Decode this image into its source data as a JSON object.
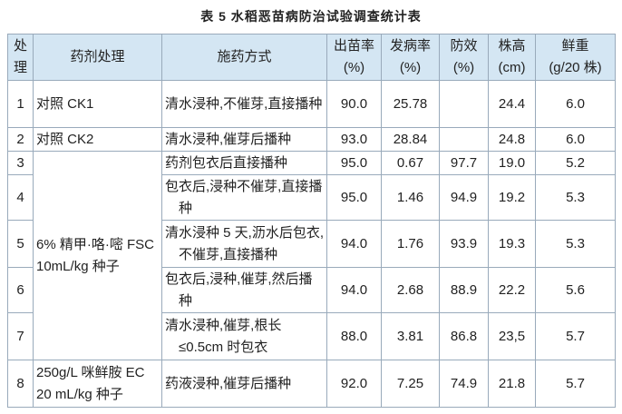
{
  "title": "表 5 水稻恶苗病防治试验调查统计表",
  "table": {
    "header": [
      {
        "label": "处理"
      },
      {
        "label": "药剂处理"
      },
      {
        "label": "施药方式"
      },
      {
        "label": "出苗率",
        "unit": "(%)"
      },
      {
        "label": "发病率",
        "unit": "(%)"
      },
      {
        "label": "防效",
        "unit": "(%)"
      },
      {
        "label": "株高",
        "unit": "(cm)"
      },
      {
        "label": "鲜重",
        "unit": "(g/20 株)"
      }
    ],
    "rows": [
      {
        "id": "1",
        "agent": "对照 CK1",
        "method": "清水浸种,不催芽,直接播种",
        "emergence": "90.0",
        "incidence": "25.78",
        "height": "24.4",
        "weight": "6.0"
      },
      {
        "id": "2",
        "agent": "对照 CK2",
        "method": "清水浸种,催芽后播种",
        "emergence": "93.0",
        "incidence": "28.84",
        "height": "24.8",
        "weight": "6.0"
      },
      {
        "id": "3",
        "agent": "6% 精甲·咯·嘧 FSC 10mL/kg 种子",
        "method": "药剂包衣后直接播种",
        "emergence": "95.0",
        "incidence": "0.67",
        "efficacy": "97.7",
        "height": "19.0",
        "weight": "5.2"
      },
      {
        "id": "4",
        "method": "包衣后,浸种不催芽,直接播种",
        "emergence": "95.0",
        "incidence": "1.46",
        "efficacy": "94.9",
        "height": "19.2",
        "weight": "5.3"
      },
      {
        "id": "5",
        "method": "清水浸种 5 天,沥水后包衣,不催芽,直接播种",
        "emergence": "94.0",
        "incidence": "1.76",
        "efficacy": "93.9",
        "height": "19.3",
        "weight": "5.3"
      },
      {
        "id": "6",
        "method": "包衣后,浸种,催芽,然后播种",
        "emergence": "94.0",
        "incidence": "2.68",
        "efficacy": "88.9",
        "height": "22.2",
        "weight": "5.6"
      },
      {
        "id": "7",
        "method": "清水浸种,催芽,根长≤0.5cm 时包衣",
        "emergence": "88.0",
        "incidence": "3.81",
        "efficacy": "86.8",
        "height": "23,5",
        "weight": "5.7"
      },
      {
        "id": "8",
        "agent": "250g/L 咪鲜胺 EC 20 mL/kg 种子",
        "method": "药液浸种,催芽后播种",
        "emergence": "92.0",
        "incidence": "7.25",
        "efficacy": "74.9",
        "height": "21.8",
        "weight": "5.7"
      }
    ]
  }
}
